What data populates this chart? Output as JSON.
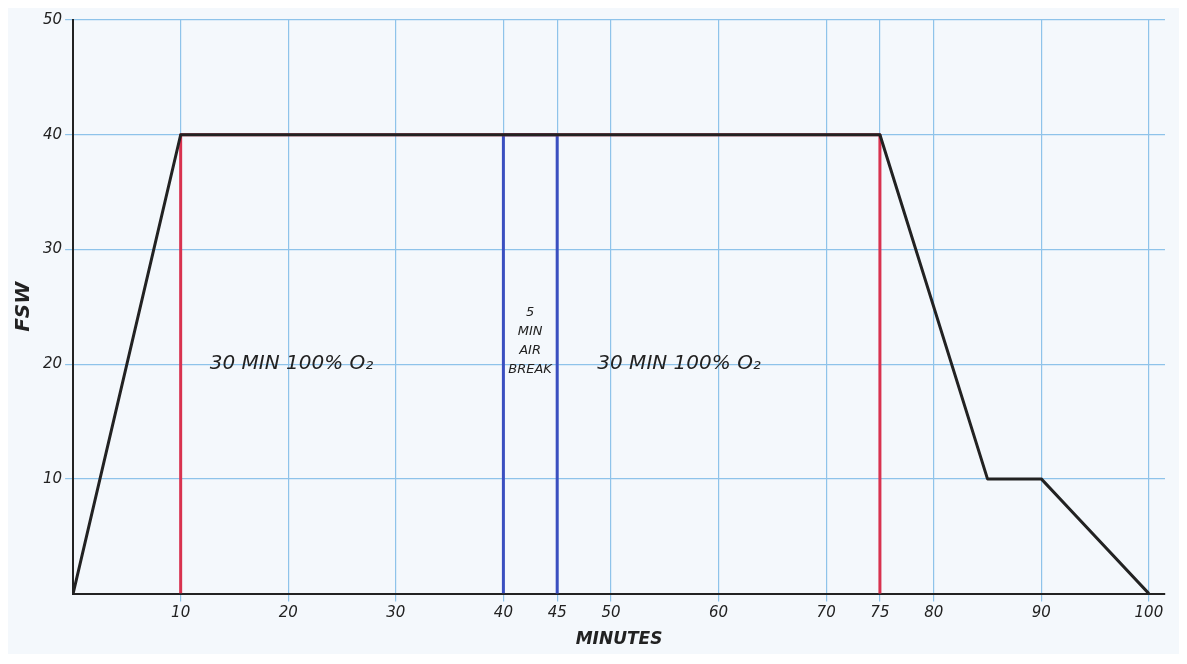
{
  "chart_data": {
    "type": "line",
    "xlabel": "MINUTES",
    "ylabel": "FSW",
    "xlim": [
      0,
      101.5
    ],
    "ylim": [
      0,
      50
    ],
    "xticks": [
      10,
      20,
      30,
      40,
      45,
      50,
      60,
      70,
      75,
      80,
      90,
      100
    ],
    "yticks": [
      10,
      20,
      30,
      40,
      50
    ],
    "grid": true,
    "marker": "none",
    "line_style": "solid",
    "legend": false,
    "series": [
      {
        "color": "#222222",
        "x": [
          0,
          10,
          75,
          85,
          90,
          100
        ],
        "values": [
          0,
          40,
          40,
          10,
          10,
          0
        ]
      },
      {
        "color": "#d8324f",
        "x": [
          10,
          10,
          75,
          75
        ],
        "values": [
          0,
          40,
          40,
          0
        ]
      },
      {
        "color": "#3a4fc0",
        "x": [
          40,
          40,
          45,
          45
        ],
        "values": [
          0,
          40,
          40,
          0
        ]
      }
    ],
    "annotations": [
      "30 MIN 100% O₂",
      "5\nMIN\nAIR\nBREAK",
      "30 MIN 100% O₂"
    ]
  }
}
